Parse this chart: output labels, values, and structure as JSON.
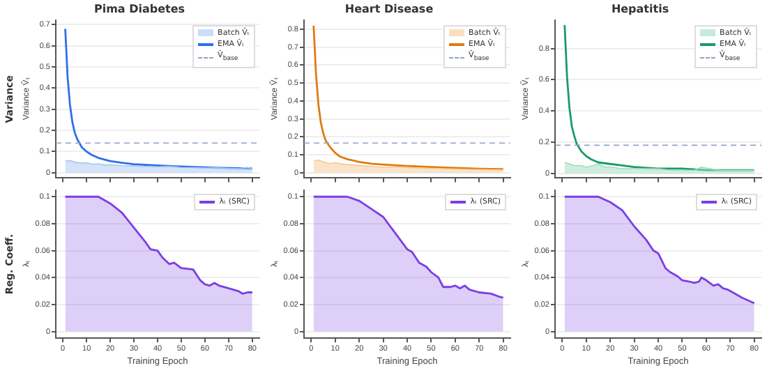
{
  "chart_data": [
    {
      "type": "line",
      "title": "Pima Diabetes",
      "ylabel": "Variance V̂ₜ",
      "annotations": [
        "Variance"
      ],
      "xlim": [
        -3,
        83
      ],
      "xticks": [
        0,
        10,
        20,
        30,
        40,
        50,
        60,
        70,
        80
      ],
      "ylim": [
        -0.025,
        0.72
      ],
      "yticks": [
        0,
        0.1,
        0.2,
        0.3,
        0.4,
        0.5,
        0.6,
        0.7
      ],
      "grid": "y",
      "legend": "top right",
      "tick_labels": "y",
      "ref_lines": [
        {
          "axis": "y",
          "value": 0.14,
          "label": "V̂$_{base}$",
          "color": "#8fa3c8",
          "line_style": "dashed"
        }
      ],
      "series": [
        {
          "name": "Batch V̂ₜ",
          "type": "area",
          "color": "#a9c6f5",
          "x": [
            1,
            3,
            5,
            8,
            10,
            13,
            15,
            18,
            20,
            25,
            30,
            35,
            40,
            45,
            50,
            55,
            60,
            65,
            70,
            75,
            78,
            80
          ],
          "values": [
            0.055,
            0.058,
            0.05,
            0.045,
            0.047,
            0.04,
            0.042,
            0.036,
            0.038,
            0.033,
            0.032,
            0.03,
            0.028,
            0.03,
            0.025,
            0.024,
            0.022,
            0.024,
            0.02,
            0.021,
            0.025,
            0.02
          ]
        },
        {
          "name": "EMA V̂ₜ",
          "type": "line",
          "color": "#2f6fe8",
          "x": [
            1,
            2,
            3,
            4,
            5,
            6,
            8,
            10,
            12,
            15,
            20,
            25,
            30,
            40,
            50,
            60,
            70,
            80
          ],
          "values": [
            0.68,
            0.45,
            0.32,
            0.24,
            0.19,
            0.16,
            0.12,
            0.1,
            0.085,
            0.07,
            0.055,
            0.047,
            0.04,
            0.034,
            0.029,
            0.025,
            0.022,
            0.02
          ]
        }
      ]
    },
    {
      "type": "line",
      "title": "Heart Disease",
      "ylabel": "Variance V̂ₜ",
      "xlim": [
        -3,
        83
      ],
      "xticks": [
        0,
        10,
        20,
        30,
        40,
        50,
        60,
        70,
        80
      ],
      "ylim": [
        -0.03,
        0.85
      ],
      "yticks": [
        0,
        0.1,
        0.2,
        0.3,
        0.4,
        0.5,
        0.6,
        0.7,
        0.8
      ],
      "grid": "y",
      "legend": "top right",
      "tick_labels": "y",
      "ref_lines": [
        {
          "axis": "y",
          "value": 0.165,
          "label": "V̂$_{base}$",
          "color": "#8fa3c8",
          "line_style": "dashed"
        }
      ],
      "series": [
        {
          "name": "Batch V̂ₜ",
          "type": "area",
          "color": "#f5c993",
          "x": [
            1,
            3,
            5,
            8,
            10,
            13,
            15,
            18,
            20,
            25,
            30,
            35,
            40,
            45,
            50,
            55,
            60,
            65,
            70,
            75,
            78,
            80
          ],
          "values": [
            0.065,
            0.07,
            0.06,
            0.05,
            0.055,
            0.048,
            0.045,
            0.042,
            0.04,
            0.035,
            0.03,
            0.032,
            0.028,
            0.025,
            0.024,
            0.022,
            0.02,
            0.018,
            0.017,
            0.016,
            0.016,
            0.015
          ]
        },
        {
          "name": "EMA V̂ₜ",
          "type": "line",
          "color": "#e07b10",
          "x": [
            1,
            2,
            3,
            4,
            5,
            6,
            8,
            10,
            12,
            15,
            20,
            25,
            30,
            40,
            50,
            60,
            70,
            80
          ],
          "values": [
            0.82,
            0.55,
            0.38,
            0.28,
            0.22,
            0.18,
            0.14,
            0.11,
            0.09,
            0.075,
            0.06,
            0.05,
            0.045,
            0.037,
            0.031,
            0.026,
            0.022,
            0.02
          ]
        }
      ]
    },
    {
      "type": "line",
      "title": "Hepatitis",
      "ylabel": "Variance V̂ₜ",
      "xlim": [
        -3,
        83
      ],
      "xticks": [
        0,
        10,
        20,
        30,
        40,
        50,
        60,
        70,
        80
      ],
      "ylim": [
        -0.03,
        0.98
      ],
      "yticks": [
        0,
        0.2,
        0.4,
        0.6,
        0.8
      ],
      "grid": "y",
      "legend": "top right",
      "tick_labels": "y",
      "ref_lines": [
        {
          "axis": "y",
          "value": 0.18,
          "label": "V̂$_{base}$",
          "color": "#8fa3c8",
          "line_style": "dashed"
        }
      ],
      "series": [
        {
          "name": "Batch V̂ₜ",
          "type": "area",
          "color": "#9fdcc0",
          "x": [
            1,
            3,
            5,
            8,
            10,
            13,
            15,
            18,
            20,
            25,
            30,
            35,
            40,
            45,
            50,
            55,
            58,
            65,
            70,
            75,
            78,
            80
          ],
          "values": [
            0.07,
            0.06,
            0.05,
            0.05,
            0.04,
            0.05,
            0.06,
            0.04,
            0.04,
            0.03,
            0.03,
            0.03,
            0.03,
            0.02,
            0.02,
            0.02,
            0.04,
            0.02,
            0.02,
            0.02,
            0.02,
            0.02
          ]
        },
        {
          "name": "EMA V̂ₜ",
          "type": "line",
          "color": "#1a9a68",
          "x": [
            1,
            2,
            3,
            4,
            5,
            6,
            8,
            10,
            12,
            15,
            20,
            25,
            30,
            40,
            50,
            60,
            70,
            80
          ],
          "values": [
            0.95,
            0.62,
            0.42,
            0.3,
            0.24,
            0.19,
            0.14,
            0.11,
            0.09,
            0.07,
            0.06,
            0.05,
            0.04,
            0.03,
            0.03,
            0.02,
            0.02,
            0.02
          ]
        }
      ]
    },
    {
      "type": "area",
      "xlabel": "Training Epoch",
      "ylabel": "λₜ",
      "annotations": [
        "Reg. Coeff."
      ],
      "xlim": [
        -3,
        83
      ],
      "xticks": [
        0,
        10,
        20,
        30,
        40,
        50,
        60,
        70,
        80
      ],
      "ylim": [
        -0.005,
        0.105
      ],
      "yticks": [
        0,
        0.02,
        0.04,
        0.06,
        0.08,
        0.1
      ],
      "grid": "y",
      "legend": "top right",
      "series": [
        {
          "name": "λₜ (SRC)",
          "color": "#7b3fe4",
          "x": [
            1,
            5,
            10,
            13,
            15,
            20,
            25,
            30,
            35,
            37,
            40,
            42,
            45,
            47,
            50,
            55,
            58,
            60,
            62,
            64,
            66,
            70,
            74,
            76,
            78,
            80
          ],
          "values": [
            0.1,
            0.1,
            0.1,
            0.1,
            0.1,
            0.095,
            0.088,
            0.077,
            0.066,
            0.061,
            0.06,
            0.055,
            0.05,
            0.051,
            0.047,
            0.046,
            0.038,
            0.035,
            0.034,
            0.036,
            0.034,
            0.032,
            0.03,
            0.028,
            0.029,
            0.029
          ]
        }
      ]
    },
    {
      "type": "area",
      "xlabel": "Training Epoch",
      "ylabel": "λₜ",
      "xlim": [
        -3,
        83
      ],
      "xticks": [
        0,
        10,
        20,
        30,
        40,
        50,
        60,
        70,
        80
      ],
      "ylim": [
        -0.005,
        0.105
      ],
      "yticks": [
        0,
        0.02,
        0.04,
        0.06,
        0.08,
        0.1
      ],
      "grid": "y",
      "legend": "top right",
      "series": [
        {
          "name": "λₜ (SRC)",
          "color": "#7b3fe4",
          "x": [
            1,
            5,
            10,
            15,
            20,
            25,
            30,
            35,
            40,
            42,
            45,
            48,
            50,
            53,
            55,
            58,
            60,
            62,
            64,
            66,
            70,
            75,
            78,
            80
          ],
          "values": [
            0.1,
            0.1,
            0.1,
            0.1,
            0.097,
            0.091,
            0.085,
            0.073,
            0.061,
            0.059,
            0.051,
            0.048,
            0.044,
            0.04,
            0.033,
            0.033,
            0.034,
            0.032,
            0.034,
            0.031,
            0.029,
            0.028,
            0.026,
            0.025
          ]
        }
      ]
    },
    {
      "type": "area",
      "xlabel": "Training Epoch",
      "ylabel": "λₜ",
      "xlim": [
        -3,
        83
      ],
      "xticks": [
        0,
        10,
        20,
        30,
        40,
        50,
        60,
        70,
        80
      ],
      "ylim": [
        -0.005,
        0.105
      ],
      "yticks": [
        0,
        0.02,
        0.04,
        0.06,
        0.08,
        0.1
      ],
      "grid": "y",
      "legend": "top right",
      "series": [
        {
          "name": "λₜ (SRC)",
          "color": "#7b3fe4",
          "x": [
            1,
            5,
            10,
            15,
            20,
            25,
            30,
            35,
            38,
            40,
            43,
            45,
            48,
            50,
            53,
            55,
            57,
            58,
            60,
            63,
            65,
            67,
            69,
            70,
            75,
            80
          ],
          "values": [
            0.1,
            0.1,
            0.1,
            0.1,
            0.096,
            0.09,
            0.078,
            0.068,
            0.06,
            0.058,
            0.047,
            0.044,
            0.041,
            0.038,
            0.037,
            0.036,
            0.037,
            0.04,
            0.038,
            0.034,
            0.035,
            0.032,
            0.031,
            0.03,
            0.025,
            0.021
          ]
        }
      ]
    }
  ]
}
